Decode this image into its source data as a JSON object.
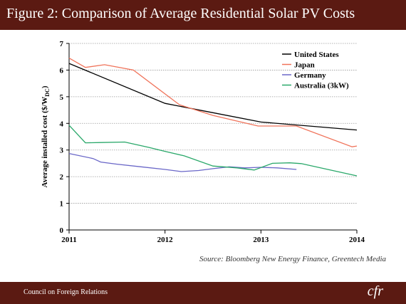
{
  "header": {
    "title": "Figure 2: Comparison of Average Residential Solar PV Costs"
  },
  "footer": {
    "org": "Council on Foreign Relations",
    "logo": "cfr"
  },
  "source": "Source: Bloomberg New Energy Finance, Greentech Media",
  "colors": {
    "bar": "#5b1a12",
    "us": "#000000",
    "japan": "#f0735a",
    "germany": "#6a67c8",
    "australia": "#2aa86a"
  },
  "chart_data": {
    "type": "line",
    "title": "",
    "ylabel": "Average installed cost ($/W",
    "ylabel_sub": "DC",
    "ylabel_close": ")",
    "xlim": [
      2011,
      2014
    ],
    "ylim": [
      0,
      7
    ],
    "x_ticks": [
      2011,
      2012,
      2013,
      2014
    ],
    "y_ticks": [
      0,
      1,
      2,
      3,
      4,
      5,
      6,
      7
    ],
    "grid": "horizontal",
    "legend_position": "top-right",
    "series": [
      {
        "name": "United States",
        "color_key": "us",
        "x": [
          2011.0,
          2012.0,
          2012.5,
          2013.0,
          2013.5,
          2014.0
        ],
        "y": [
          6.25,
          4.75,
          4.4,
          4.05,
          3.9,
          3.75
        ]
      },
      {
        "name": "Japan",
        "color_key": "japan",
        "x": [
          2011.0,
          2011.17,
          2011.37,
          2011.67,
          2012.15,
          2012.5,
          2012.97,
          2013.37,
          2013.95,
          2014.0
        ],
        "y": [
          6.45,
          6.1,
          6.2,
          6.0,
          4.7,
          4.3,
          3.9,
          3.9,
          3.12,
          3.15
        ],
        "y_note": "last point slightly above previous"
      },
      {
        "name": "Germany",
        "color_key": "germany",
        "x": [
          2011.0,
          2011.25,
          2011.33,
          2011.5,
          2011.75,
          2012.0,
          2012.17,
          2012.35,
          2012.5,
          2012.67,
          2012.83,
          2013.0,
          2013.17,
          2013.37
        ],
        "y": [
          2.87,
          2.68,
          2.55,
          2.47,
          2.37,
          2.27,
          2.19,
          2.23,
          2.3,
          2.37,
          2.33,
          2.35,
          2.33,
          2.27
        ]
      },
      {
        "name": "Australia (3kW)",
        "color_key": "australia",
        "x": [
          2011.0,
          2011.17,
          2011.33,
          2011.58,
          2011.83,
          2012.0,
          2012.2,
          2012.5,
          2012.75,
          2012.93,
          2013.12,
          2013.3,
          2013.42,
          2014.0
        ],
        "y": [
          3.93,
          3.27,
          3.28,
          3.3,
          3.1,
          2.95,
          2.78,
          2.4,
          2.33,
          2.25,
          2.5,
          2.52,
          2.49,
          2.03
        ]
      }
    ]
  }
}
